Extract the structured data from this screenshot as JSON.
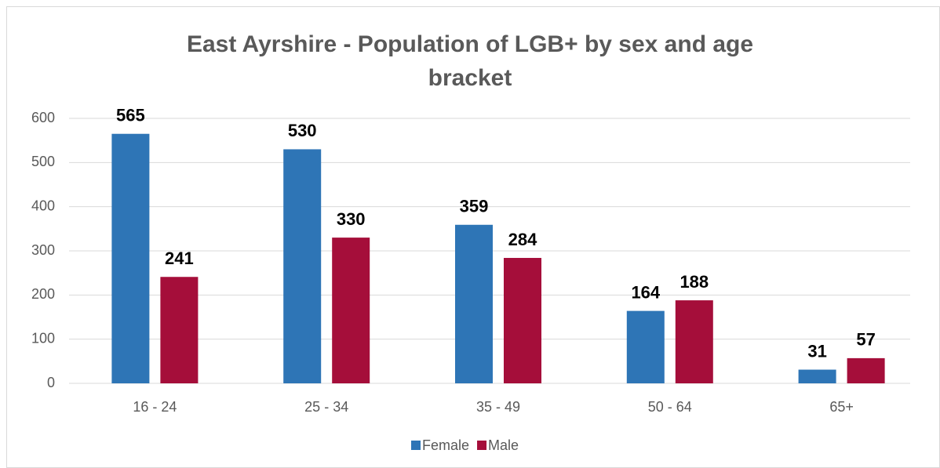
{
  "chart_data": {
    "type": "bar",
    "title": "East Ayrshire - Population of LGB+ by sex and age bracket",
    "categories": [
      "16 - 24",
      "25 - 34",
      "35 - 49",
      "50 - 64",
      "65+"
    ],
    "series": [
      {
        "name": "Female",
        "color": "#2e75b6",
        "values": [
          565,
          530,
          359,
          164,
          31
        ]
      },
      {
        "name": "Male",
        "color": "#a50e3a",
        "values": [
          241,
          330,
          284,
          188,
          57
        ]
      }
    ],
    "ylim": [
      0,
      600
    ],
    "yticks": [
      0,
      100,
      200,
      300,
      400,
      500,
      600
    ],
    "grid": true,
    "legend": "bottom"
  }
}
